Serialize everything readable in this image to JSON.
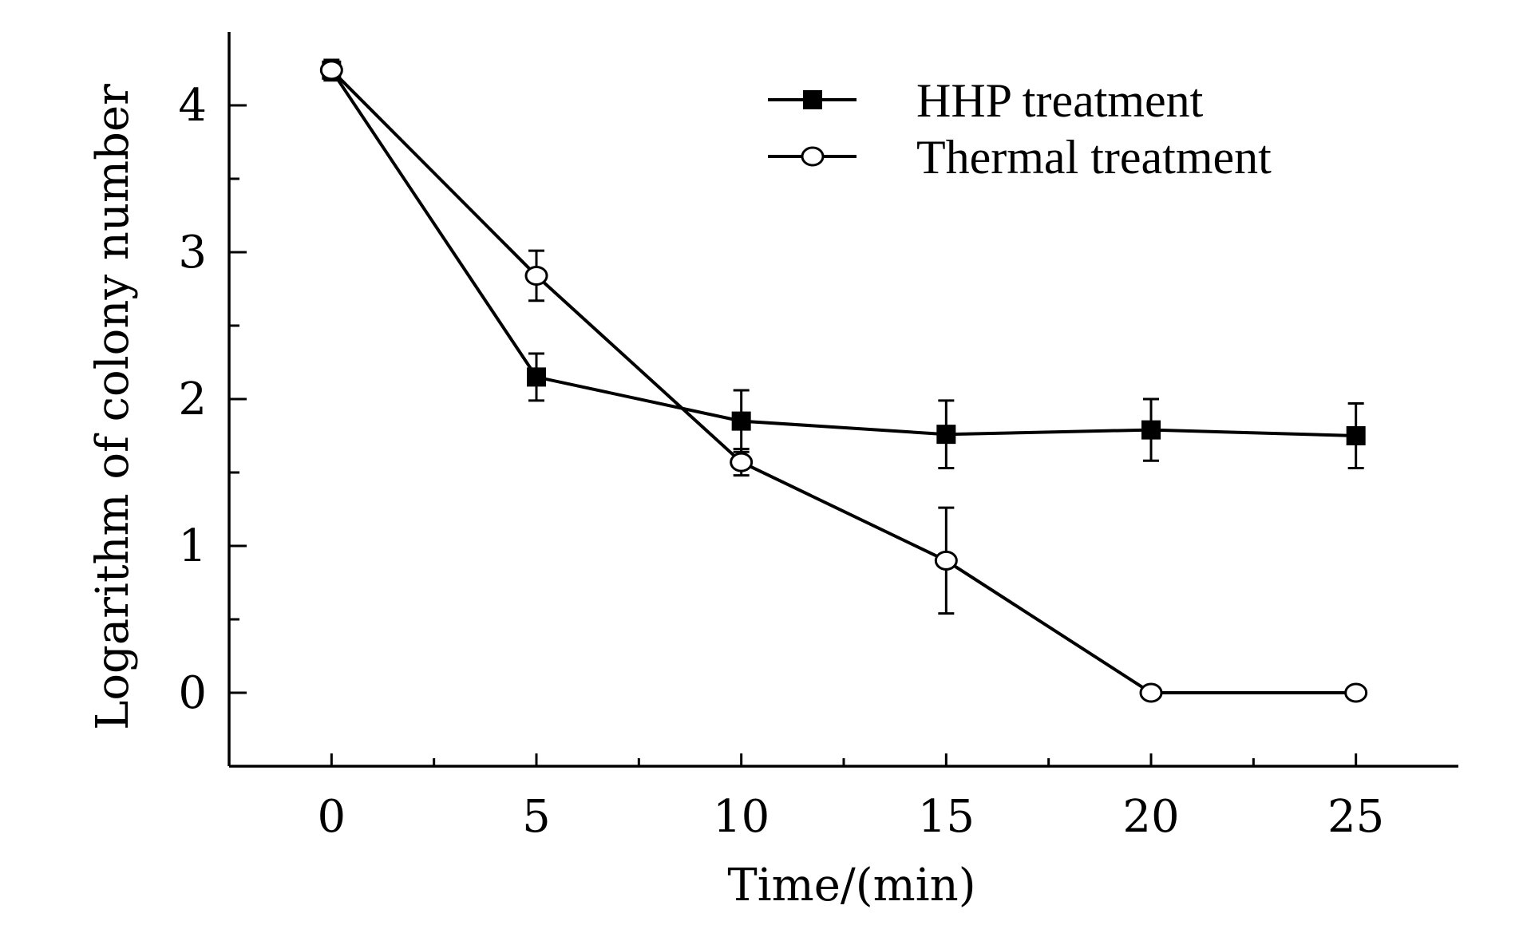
{
  "chart_data": {
    "type": "line",
    "xlabel": "Time/(min)",
    "ylabel": "Logarithm of colony number",
    "xlim": [
      -2.5,
      27.5
    ],
    "ylim": [
      -0.5,
      4.5
    ],
    "xticks": [
      0,
      5,
      10,
      15,
      20,
      25
    ],
    "yticks": [
      0,
      1,
      2,
      3,
      4
    ],
    "x_minor_step": 2.5,
    "y_minor_step": 0.5,
    "grid": false,
    "legend_position": "top-right",
    "series": [
      {
        "name": "HHP treatment",
        "marker": "filled-square",
        "x": [
          0,
          5,
          10,
          15,
          20,
          25
        ],
        "y": [
          4.24,
          2.15,
          1.85,
          1.76,
          1.79,
          1.75
        ],
        "err": [
          0.05,
          0.16,
          0.21,
          0.23,
          0.21,
          0.22
        ]
      },
      {
        "name": "Thermal treatment",
        "marker": "open-circle",
        "x": [
          0,
          5,
          10,
          15,
          20,
          25
        ],
        "y": [
          4.24,
          2.84,
          1.57,
          0.9,
          0.0,
          0.0
        ],
        "err": [
          0.07,
          0.17,
          0.09,
          0.36,
          0.0,
          0.0
        ]
      }
    ]
  }
}
